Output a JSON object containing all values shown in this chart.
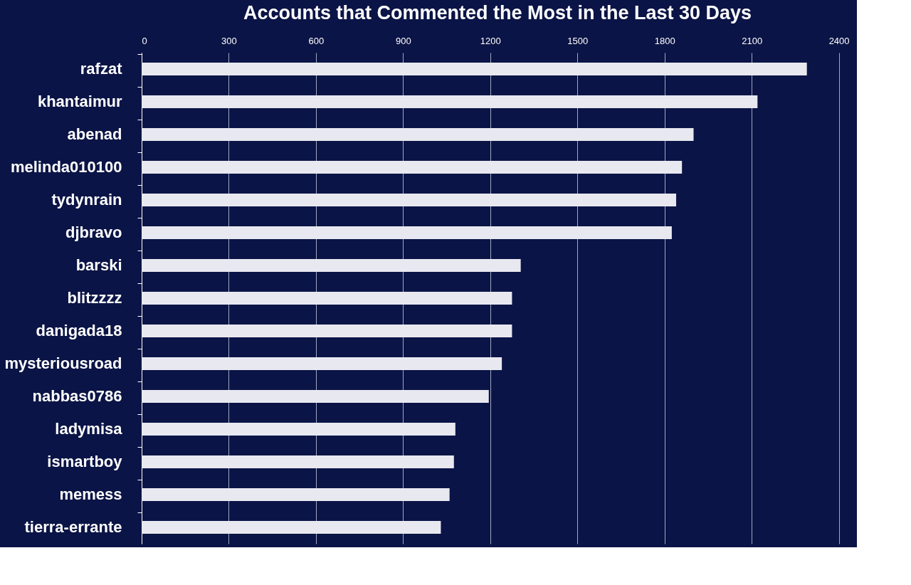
{
  "chart_data": {
    "type": "bar",
    "orientation": "horizontal",
    "title": "Accounts that Commented the Most in the Last 30 Days",
    "categories": [
      "rafzat",
      "khantaimur",
      "abenad",
      "melinda010100",
      "tydynrain",
      "djbravo",
      "barski",
      "blitzzzz",
      "danigada18",
      "mysteriousroad",
      "nabbas0786",
      "ladymisa",
      "ismartboy",
      "memess",
      "tierra-errante"
    ],
    "values": [
      2290,
      2120,
      1900,
      1860,
      1840,
      1825,
      1305,
      1275,
      1275,
      1240,
      1195,
      1080,
      1075,
      1060,
      1030
    ],
    "color": "#e8e9f0",
    "xlim": [
      0,
      2450
    ],
    "xticks": [
      0,
      300,
      600,
      900,
      1200,
      1500,
      1800,
      2100,
      2400
    ],
    "grid": "x"
  }
}
